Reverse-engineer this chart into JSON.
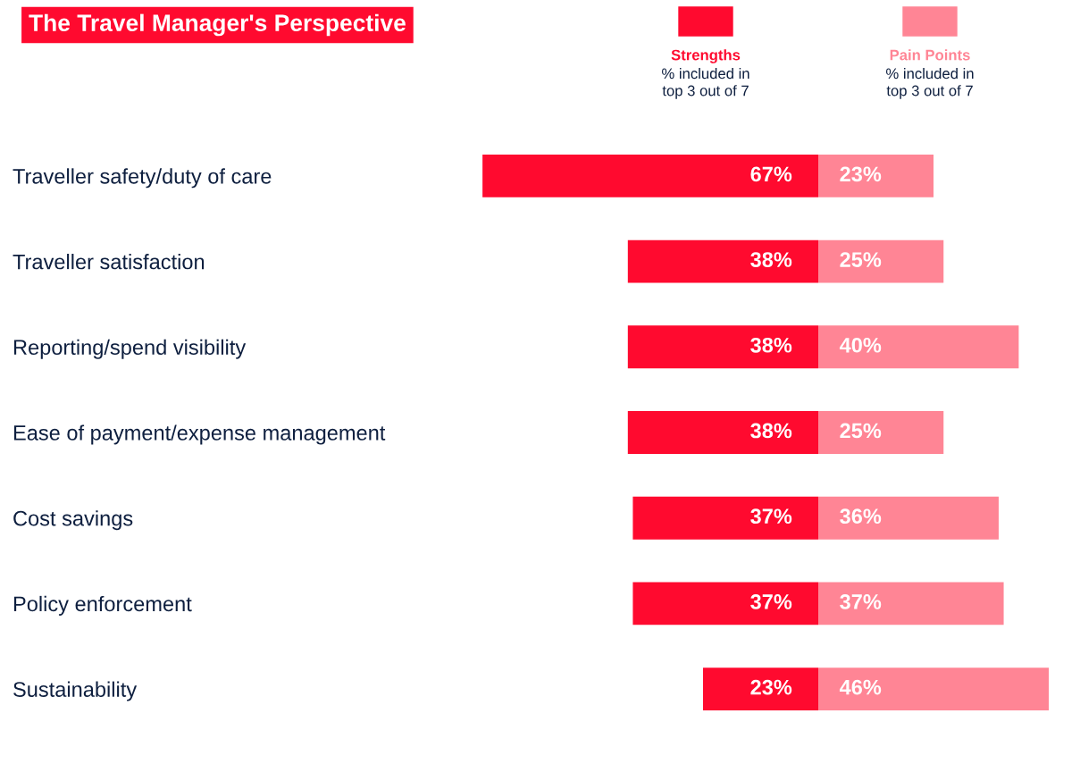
{
  "chart_data": [
    {
      "type": "bar",
      "orientation": "horizontal",
      "title": "The Travel Manager's Perspective",
      "categories": [
        "Traveller safety/duty of care",
        "Traveller satisfaction",
        "Reporting/spend visibility",
        "Ease of payment/expense management",
        "Cost savings",
        "Policy enforcement",
        "Sustainability"
      ],
      "tick_labels": "y",
      "grid": false,
      "legend": "top",
      "series": [
        {
          "name": "Strengths",
          "color": "#ff0a2f",
          "values": [
            67,
            38,
            38,
            38,
            37,
            37,
            23
          ],
          "value_labels": [
            "67%",
            "38%",
            "38%",
            "38%",
            "37%",
            "37%",
            "23%"
          ]
        }
      ],
      "annotations": [
        "% included in\ntop 3 out of 7"
      ]
    },
    {
      "type": "bar",
      "orientation": "horizontal",
      "tick_labels": false,
      "grid": false,
      "legend": "top",
      "series": [
        {
          "name": "Pain Points",
          "color": "#ff8595",
          "values": [
            23,
            25,
            40,
            25,
            36,
            37,
            46
          ],
          "value_labels": [
            "23%",
            "25%",
            "40%",
            "25%",
            "36%",
            "37%",
            "46%"
          ]
        }
      ],
      "annotations": [
        "% included in\ntop 3 out of 7"
      ]
    }
  ]
}
